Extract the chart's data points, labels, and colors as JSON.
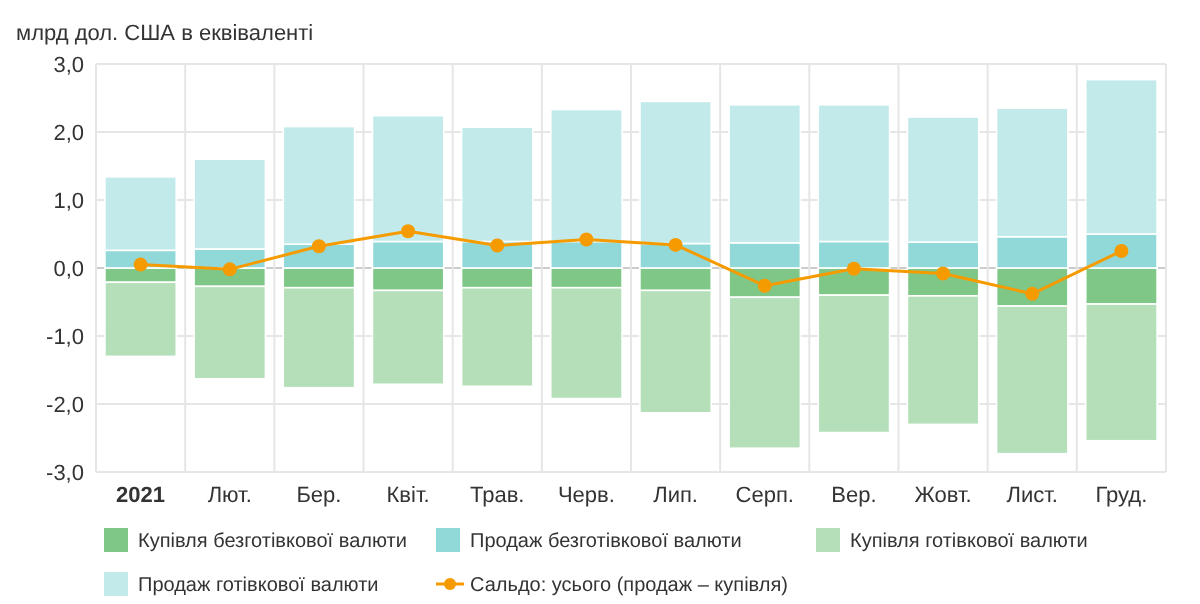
{
  "chart_data": {
    "type": "bar",
    "stacked": true,
    "ylabel": "млрд дол. США в еквіваленті",
    "categories": [
      "2021",
      "Лют.",
      "Бер.",
      "Квіт.",
      "Трав.",
      "Черв.",
      "Лип.",
      "Серп.",
      "Вер.",
      "Жовт.",
      "Лист.",
      "Груд."
    ],
    "ylim": [
      -3,
      3
    ],
    "yticks": [
      {
        "value": -3,
        "label": "-3,0"
      },
      {
        "value": -2,
        "label": "-2,0"
      },
      {
        "value": -1,
        "label": "-1,0"
      },
      {
        "value": 0,
        "label": "0,0"
      },
      {
        "value": 1,
        "label": "1,0"
      },
      {
        "value": 2,
        "label": "2,0"
      },
      {
        "value": 3,
        "label": "3,0"
      }
    ],
    "grid": true,
    "legend": "bottom",
    "series": [
      {
        "name": "Купівля безготівкової валюти",
        "color": "#7fc787",
        "values": [
          -0.21,
          -0.27,
          -0.29,
          -0.33,
          -0.29,
          -0.29,
          -0.33,
          -0.43,
          -0.4,
          -0.41,
          -0.56,
          -0.53
        ]
      },
      {
        "name": "Продаж безготівкової валюти",
        "color": "#91d9d9",
        "values": [
          0.26,
          0.28,
          0.35,
          0.39,
          0.39,
          0.39,
          0.36,
          0.37,
          0.39,
          0.38,
          0.46,
          0.5
        ]
      },
      {
        "name": "Купівля готівкової валюти",
        "color": "#b5dfb9",
        "values": [
          -1.09,
          -1.36,
          -1.47,
          -1.38,
          -1.45,
          -1.63,
          -1.8,
          -2.22,
          -2.02,
          -1.89,
          -2.17,
          -2.01
        ]
      },
      {
        "name": "Продаж готівкової валюти",
        "color": "#c3eaea",
        "values": [
          1.08,
          1.32,
          1.73,
          1.85,
          1.68,
          1.94,
          2.09,
          2.03,
          2.01,
          1.84,
          1.89,
          2.27
        ]
      },
      {
        "name": "Сальдо: усього (продаж – купівля)",
        "color": "#f59b00",
        "type": "line",
        "marker": "circle",
        "values": [
          0.05,
          -0.02,
          0.32,
          0.54,
          0.33,
          0.42,
          0.34,
          -0.26,
          -0.01,
          -0.08,
          -0.38,
          0.25
        ]
      }
    ]
  }
}
